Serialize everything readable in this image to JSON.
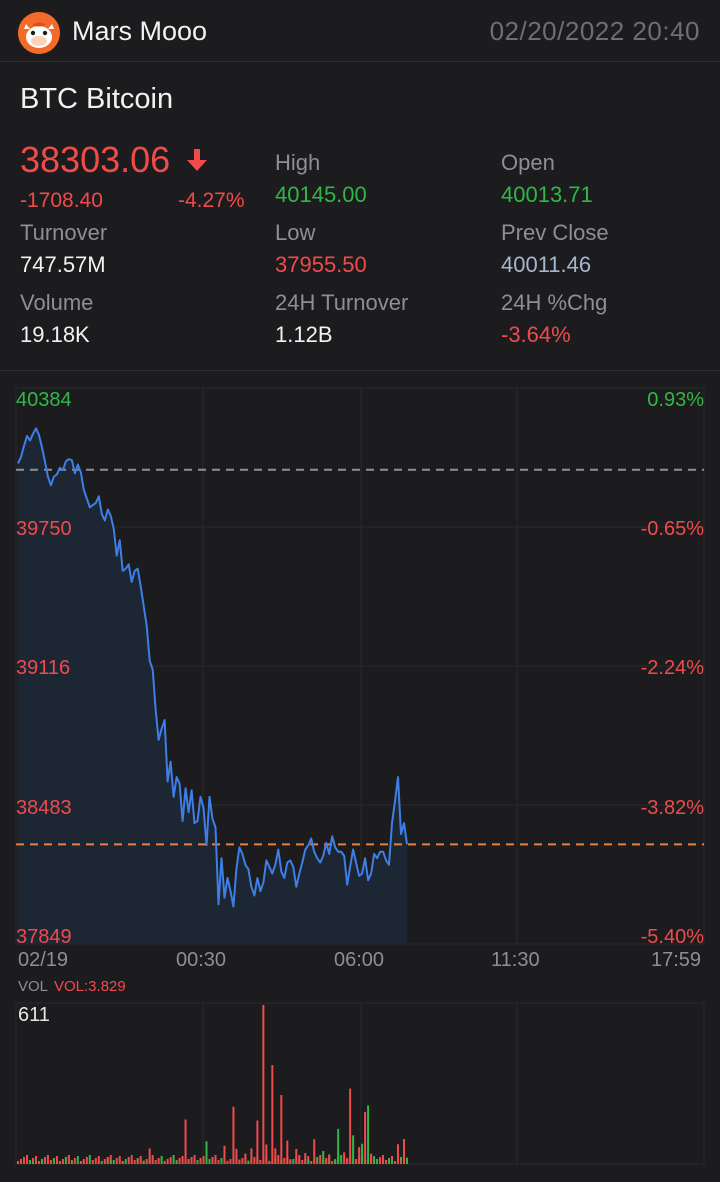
{
  "header": {
    "app_name": "Mars Mooo",
    "datetime": "02/20/2022  20:40"
  },
  "quote": {
    "symbol": "BTC  Bitcoin",
    "price": "38303.06",
    "change": "-1708.40",
    "change_pct": "-4.27%",
    "direction": "down",
    "stats": [
      {
        "label": "High",
        "value": "40145.00",
        "color": "#2fb846"
      },
      {
        "label": "Open",
        "value": "40013.71",
        "color": "#2fb846"
      },
      {
        "label": "Turnover",
        "value": "747.57M",
        "color": "#f2f2f2"
      },
      {
        "label": "Low",
        "value": "37955.50",
        "color": "#f04b4b"
      },
      {
        "label": "Prev Close",
        "value": "40011.46",
        "color": "#a8b6cc"
      },
      {
        "label": "Volume",
        "value": "19.18K",
        "color": "#f2f2f2"
      },
      {
        "label": "24H Turnover",
        "value": "1.12B",
        "color": "#f2f2f2"
      },
      {
        "label": "24H %Chg",
        "value": "-3.64%",
        "color": "#f04b4b"
      }
    ]
  },
  "chart": {
    "price_labels": [
      "40384",
      "39750",
      "39116",
      "38483",
      "37849"
    ],
    "pct_labels": [
      "0.93%",
      "-0.65%",
      "-2.24%",
      "-3.82%",
      "-5.40%"
    ],
    "time_labels": [
      "02/19",
      "00:30",
      "06:00",
      "11:30",
      "17:59"
    ],
    "vol_label": "VOL",
    "vol_value": "VOL:3.829",
    "vol_max": "611"
  },
  "chart_data": [
    {
      "type": "line",
      "series": [
        {
          "x": [
            0,
            1,
            2,
            3,
            4,
            5,
            6,
            7,
            8,
            9,
            10,
            11,
            12,
            13,
            14,
            15,
            16,
            17,
            18,
            19,
            20,
            21,
            22,
            23,
            24,
            25,
            26,
            27,
            28,
            29,
            30,
            31,
            32,
            33,
            34,
            35,
            36,
            37,
            38,
            39,
            40,
            41,
            42,
            43,
            44,
            45,
            46,
            47,
            48,
            49,
            50,
            51,
            52,
            53,
            54,
            55,
            56,
            57,
            58,
            59,
            60,
            61,
            62,
            63,
            64,
            65,
            66,
            67,
            68,
            69,
            70,
            71,
            72,
            73,
            74,
            75,
            76,
            77,
            78,
            79,
            80,
            81,
            82,
            83,
            84,
            85,
            86,
            87,
            88,
            89,
            90,
            91,
            92,
            93,
            94,
            95,
            96,
            97,
            98,
            99,
            100,
            101,
            102,
            103,
            104,
            105,
            106,
            107,
            108,
            109,
            110,
            111,
            112,
            113,
            114,
            115,
            116,
            117,
            118,
            119,
            120,
            121,
            122,
            123,
            124,
            125,
            126,
            127,
            128,
            129,
            130
          ],
          "values": [
            40040,
            40070,
            40120,
            40165,
            40145,
            40175,
            40200,
            40170,
            40115,
            40050,
            39980,
            39940,
            39980,
            39990,
            40020,
            40010,
            40050,
            40060,
            40055,
            39995,
            40035,
            40000,
            39920,
            39880,
            39840,
            39850,
            39860,
            39890,
            39810,
            39780,
            39830,
            39800,
            39740,
            39620,
            39690,
            39550,
            39560,
            39580,
            39500,
            39550,
            39560,
            39480,
            39390,
            39300,
            39140,
            39100,
            38920,
            38780,
            38830,
            38870,
            38590,
            38680,
            38520,
            38610,
            38580,
            38410,
            38560,
            38450,
            38550,
            38400,
            38410,
            38520,
            38470,
            38300,
            38520,
            38420,
            38380,
            38030,
            38240,
            38060,
            38150,
            38090,
            38020,
            38190,
            38290,
            38260,
            38210,
            38190,
            38110,
            38070,
            38150,
            38090,
            38130,
            38230,
            38200,
            38170,
            38210,
            38280,
            38180,
            38150,
            38220,
            38230,
            38200,
            38110,
            38170,
            38220,
            38280,
            38300,
            38330,
            38270,
            38240,
            38220,
            38250,
            38310,
            38260,
            38340,
            38290,
            38270,
            38270,
            38250,
            38120,
            38200,
            38280,
            38220,
            38160,
            38170,
            38240,
            38140,
            38170,
            38260,
            38240,
            38270,
            38270,
            38230,
            38210,
            38400,
            38500,
            38610,
            38350,
            38400,
            38303
          ]
        }
      ],
      "ylim": [
        37849,
        40384
      ],
      "reference_lines": [
        {
          "name": "Prev Close",
          "value": 40011.46
        },
        {
          "name": "Last",
          "value": 38303.06
        }
      ],
      "tick_labels_y_left": [
        "40384",
        "39750",
        "39116",
        "38483",
        "37849"
      ],
      "tick_labels_y_right": [
        "0.93%",
        "-0.65%",
        "-2.24%",
        "-3.82%",
        "-5.40%"
      ],
      "tick_labels_x": [
        "02/19",
        "00:30",
        "06:00",
        "11:30",
        "17:59"
      ],
      "grid": true
    },
    {
      "type": "bar",
      "ylim": [
        0,
        611
      ],
      "bars": [
        {
          "i": 0,
          "v": 9,
          "up": false
        },
        {
          "i": 5,
          "v": 11,
          "up": true
        },
        {
          "i": 9,
          "v": 7,
          "up": false
        },
        {
          "i": 14,
          "v": 10,
          "up": false
        },
        {
          "i": 18,
          "v": 8,
          "up": true
        },
        {
          "i": 22,
          "v": 12,
          "up": false
        },
        {
          "i": 27,
          "v": 9,
          "up": false
        },
        {
          "i": 31,
          "v": 14,
          "up": true
        },
        {
          "i": 35,
          "v": 11,
          "up": false
        },
        {
          "i": 38,
          "v": 8,
          "up": false
        },
        {
          "i": 42,
          "v": 13,
          "up": true
        },
        {
          "i": 45,
          "v": 10,
          "up": false
        },
        {
          "i": 49,
          "v": 12,
          "up": false
        },
        {
          "i": 53,
          "v": 9,
          "up": true
        },
        {
          "i": 57,
          "v": 15,
          "up": false
        },
        {
          "i": 61,
          "v": 11,
          "up": false
        },
        {
          "i": 64,
          "v": 14,
          "up": true
        },
        {
          "i": 67,
          "v": 10,
          "up": false
        },
        {
          "i": 70,
          "v": 12,
          "up": false
        },
        {
          "i": 74,
          "v": 17,
          "up": false
        },
        {
          "i": 77,
          "v": 13,
          "up": true
        },
        {
          "i": 80,
          "v": 16,
          "up": false
        },
        {
          "i": 84,
          "v": 12,
          "up": false
        },
        {
          "i": 88,
          "v": 15,
          "up": true
        },
        {
          "i": 91,
          "v": 18,
          "up": false
        },
        {
          "i": 94,
          "v": 14,
          "up": false
        },
        {
          "i": 97,
          "v": 16,
          "up": true
        },
        {
          "i": 100,
          "v": 13,
          "up": false
        },
        {
          "i": 103,
          "v": 18,
          "up": false
        },
        {
          "i": 106,
          "v": 15,
          "up": true
        },
        {
          "i": 110,
          "v": 17,
          "up": false
        },
        {
          "i": 113,
          "v": 12,
          "up": false
        },
        {
          "i": 116,
          "v": 16,
          "up": true
        },
        {
          "i": 119,
          "v": 14,
          "up": false
        },
        {
          "i": 122,
          "v": 18,
          "up": false
        },
        {
          "i": 125,
          "v": 15,
          "up": true
        },
        {
          "i": 128,
          "v": 13,
          "up": false
        },
        {
          "i": 30,
          "v": 25,
          "up": false
        },
        {
          "i": 40,
          "v": 20,
          "up": false
        },
        {
          "i": 44,
          "v": 60,
          "up": false
        },
        {
          "i": 56,
          "v": 171,
          "up": false
        },
        {
          "i": 63,
          "v": 87,
          "up": true
        },
        {
          "i": 69,
          "v": 70,
          "up": false
        },
        {
          "i": 72,
          "v": 220,
          "up": false
        },
        {
          "i": 73,
          "v": 58,
          "up": false
        },
        {
          "i": 76,
          "v": 40,
          "up": false
        },
        {
          "i": 78,
          "v": 60,
          "up": false
        },
        {
          "i": 80,
          "v": 167,
          "up": false
        },
        {
          "i": 82,
          "v": 611,
          "up": false
        },
        {
          "i": 83,
          "v": 75,
          "up": false
        },
        {
          "i": 85,
          "v": 380,
          "up": false
        },
        {
          "i": 86,
          "v": 60,
          "up": false
        },
        {
          "i": 88,
          "v": 265,
          "up": false
        },
        {
          "i": 90,
          "v": 90,
          "up": false
        },
        {
          "i": 93,
          "v": 58,
          "up": false
        },
        {
          "i": 96,
          "v": 42,
          "up": false
        },
        {
          "i": 99,
          "v": 95,
          "up": false
        },
        {
          "i": 102,
          "v": 50,
          "up": true
        },
        {
          "i": 104,
          "v": 37,
          "up": false
        },
        {
          "i": 107,
          "v": 135,
          "up": true
        },
        {
          "i": 109,
          "v": 45,
          "up": false
        },
        {
          "i": 111,
          "v": 290,
          "up": false
        },
        {
          "i": 112,
          "v": 110,
          "up": true
        },
        {
          "i": 114,
          "v": 65,
          "up": false
        },
        {
          "i": 115,
          "v": 78,
          "up": true
        },
        {
          "i": 116,
          "v": 200,
          "up": false
        },
        {
          "i": 117,
          "v": 225,
          "up": true
        },
        {
          "i": 118,
          "v": 40,
          "up": false
        },
        {
          "i": 119,
          "v": 30,
          "up": true
        },
        {
          "i": 127,
          "v": 76,
          "up": false
        },
        {
          "i": 129,
          "v": 96,
          "up": false
        },
        {
          "i": 130,
          "v": 24,
          "up": true
        }
      ]
    }
  ],
  "colors": {
    "bg": "#1c1c1e",
    "up": "#2fb846",
    "down": "#f04b4b",
    "line": "#3d7fe6",
    "grid": "#2a2a2c",
    "prev_close_line": "#8e8e93",
    "last_price_line": "#f07d3c",
    "fill": "#1e2835"
  },
  "icons": {
    "logo": "mars-mooo-cow-logo",
    "arrow": "down-arrow-icon"
  }
}
